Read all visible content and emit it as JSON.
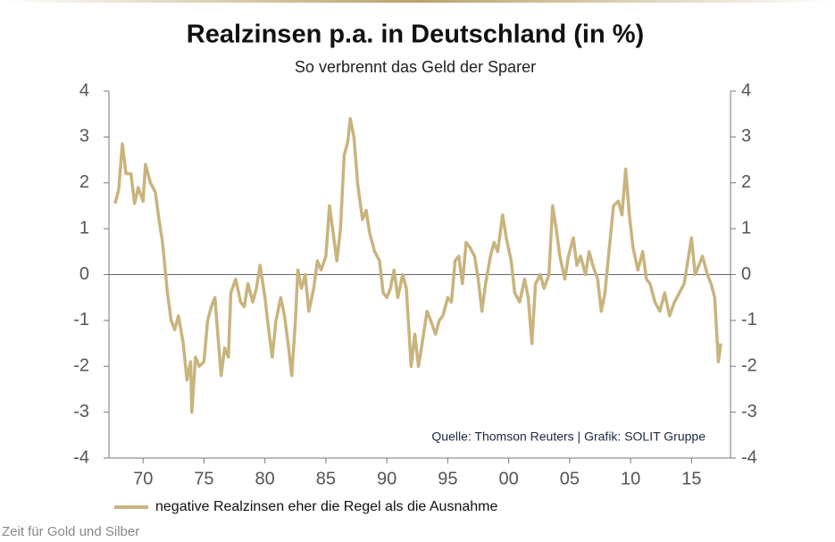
{
  "chart_data": {
    "type": "line",
    "title": "Realzinsen p.a. in Deutschland (in %)",
    "subtitle": "So verbrennt das Geld der Sparer",
    "annotation": "Quelle: Thomson Reuters | Grafik: SOLIT Gruppe",
    "footer": "Zeit für Gold und Silber",
    "xlim": [
      1967.2,
      2018.2
    ],
    "xticks": [
      {
        "value": 1970,
        "label": "70"
      },
      {
        "value": 1975,
        "label": "75"
      },
      {
        "value": 1980,
        "label": "80"
      },
      {
        "value": 1985,
        "label": "85"
      },
      {
        "value": 1990,
        "label": "90"
      },
      {
        "value": 1995,
        "label": "95"
      },
      {
        "value": 2000,
        "label": "00"
      },
      {
        "value": 2005,
        "label": "05"
      },
      {
        "value": 2010,
        "label": "10"
      },
      {
        "value": 2015,
        "label": "15"
      }
    ],
    "ylim": [
      -4,
      4
    ],
    "yticks": [
      -4,
      -3,
      -2,
      -1,
      0,
      1,
      2,
      3,
      4
    ],
    "y2lim": [
      -4,
      4
    ],
    "y2ticks": [
      -4,
      -3,
      -2,
      -1,
      0,
      1,
      2,
      3,
      4
    ],
    "x": [
      1967.7,
      1968.0,
      1968.3,
      1968.6,
      1969.0,
      1969.3,
      1969.6,
      1970.0,
      1970.2,
      1970.6,
      1971.0,
      1971.3,
      1971.6,
      1972.0,
      1972.3,
      1972.6,
      1972.9,
      1973.3,
      1973.6,
      1973.9,
      1974.0,
      1974.3,
      1974.6,
      1975.0,
      1975.3,
      1975.6,
      1975.9,
      1976.1,
      1976.4,
      1976.7,
      1977.0,
      1977.2,
      1977.6,
      1978.0,
      1978.3,
      1978.6,
      1979.0,
      1979.3,
      1979.6,
      1980.0,
      1980.3,
      1980.6,
      1980.9,
      1981.3,
      1981.6,
      1981.9,
      1982.2,
      1982.5,
      1982.7,
      1983.0,
      1983.3,
      1983.6,
      1984.0,
      1984.3,
      1984.6,
      1985.0,
      1985.3,
      1985.6,
      1985.9,
      1986.2,
      1986.5,
      1986.8,
      1987.0,
      1987.3,
      1987.6,
      1988.0,
      1988.3,
      1988.6,
      1989.0,
      1989.4,
      1989.7,
      1990.0,
      1990.3,
      1990.6,
      1990.9,
      1991.3,
      1991.6,
      1992.0,
      1992.3,
      1992.6,
      1992.9,
      1993.3,
      1993.6,
      1994.0,
      1994.3,
      1994.6,
      1995.0,
      1995.3,
      1995.6,
      1995.9,
      1996.2,
      1996.5,
      1996.8,
      1997.2,
      1997.5,
      1997.8,
      1998.1,
      1998.5,
      1998.8,
      1999.1,
      1999.5,
      1999.8,
      2000.2,
      2000.5,
      2000.9,
      2001.3,
      2001.6,
      2001.9,
      2002.2,
      2002.6,
      2002.9,
      2003.3,
      2003.6,
      2003.9,
      2004.2,
      2004.6,
      2004.9,
      2005.3,
      2005.6,
      2005.9,
      2006.3,
      2006.6,
      2006.9,
      2007.3,
      2007.6,
      2007.9,
      2008.3,
      2008.6,
      2009.0,
      2009.3,
      2009.6,
      2009.9,
      2010.2,
      2010.6,
      2011.0,
      2011.3,
      2011.6,
      2012.0,
      2012.4,
      2012.8,
      2013.2,
      2013.6,
      2014.0,
      2014.4,
      2014.7,
      2015.0,
      2015.3,
      2015.6,
      2015.9,
      2016.3,
      2016.6,
      2016.9,
      2017.2,
      2017.4
    ],
    "series": [
      {
        "name": "negative Realzinsen eher die Regel als die Ausnahme",
        "color": "#c9b47e",
        "values": [
          1.55,
          1.85,
          2.85,
          2.2,
          2.2,
          1.55,
          1.9,
          1.6,
          2.4,
          2.0,
          1.8,
          1.2,
          0.7,
          -0.4,
          -1.0,
          -1.2,
          -0.9,
          -1.5,
          -2.3,
          -1.9,
          -3.0,
          -1.8,
          -2.0,
          -1.9,
          -1.0,
          -0.7,
          -0.5,
          -1.2,
          -2.2,
          -1.6,
          -1.8,
          -0.4,
          -0.1,
          -0.6,
          -0.7,
          -0.2,
          -0.6,
          -0.3,
          0.2,
          -0.5,
          -1.2,
          -1.8,
          -1.0,
          -0.5,
          -0.9,
          -1.5,
          -2.2,
          -1.0,
          0.1,
          -0.3,
          0.0,
          -0.8,
          -0.3,
          0.3,
          0.1,
          0.4,
          1.5,
          0.9,
          0.3,
          1.0,
          2.6,
          2.9,
          3.4,
          3.0,
          2.0,
          1.2,
          1.4,
          0.9,
          0.5,
          0.3,
          -0.4,
          -0.5,
          -0.3,
          0.1,
          -0.5,
          0.0,
          -0.3,
          -2.0,
          -1.3,
          -2.0,
          -1.5,
          -0.8,
          -1.0,
          -1.3,
          -1.0,
          -0.9,
          -0.5,
          -0.6,
          0.3,
          0.4,
          -0.2,
          0.7,
          0.6,
          0.4,
          -0.1,
          -0.8,
          -0.2,
          0.4,
          0.7,
          0.5,
          1.3,
          0.8,
          0.3,
          -0.4,
          -0.6,
          -0.1,
          -0.5,
          -1.5,
          -0.2,
          0.0,
          -0.3,
          0.0,
          1.5,
          1.0,
          0.4,
          -0.1,
          0.4,
          0.8,
          0.2,
          0.4,
          0.0,
          0.5,
          0.2,
          -0.1,
          -0.8,
          -0.4,
          0.7,
          1.5,
          1.6,
          1.3,
          2.3,
          1.3,
          0.6,
          0.1,
          0.5,
          -0.1,
          -0.2,
          -0.6,
          -0.8,
          -0.4,
          -0.9,
          -0.6,
          -0.4,
          -0.2,
          0.3,
          0.8,
          0.0,
          0.2,
          0.4,
          0.0,
          -0.2,
          -0.5,
          -1.9,
          -1.5
        ]
      }
    ]
  }
}
